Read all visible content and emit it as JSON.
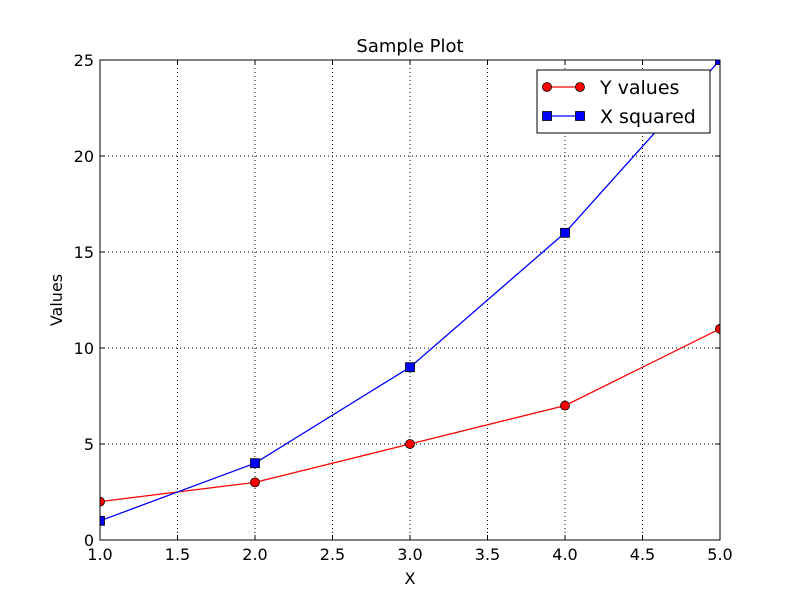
{
  "chart_data": {
    "type": "line",
    "title": "Sample Plot",
    "xlabel": "X",
    "ylabel": "Values",
    "xlim": [
      1.0,
      5.0
    ],
    "ylim": [
      0,
      25
    ],
    "xticks": [
      "1.0",
      "1.5",
      "2.0",
      "2.5",
      "3.0",
      "3.5",
      "4.0",
      "4.5",
      "5.0"
    ],
    "yticks": [
      "0",
      "5",
      "10",
      "15",
      "20",
      "25"
    ],
    "grid": true,
    "legend_position": "top-right",
    "series": [
      {
        "name": "Y values",
        "color": "#ff0000",
        "marker": "circle",
        "x": [
          1,
          2,
          3,
          4,
          5
        ],
        "y": [
          2,
          3,
          5,
          7,
          11
        ]
      },
      {
        "name": "X squared",
        "color": "#0000ff",
        "marker": "square",
        "x": [
          1,
          2,
          3,
          4,
          5
        ],
        "y": [
          1,
          4,
          9,
          16,
          25
        ]
      }
    ]
  }
}
